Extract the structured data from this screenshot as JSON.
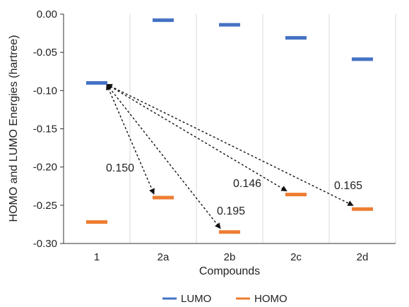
{
  "chart_data": {
    "type": "scatter",
    "xlabel": "Compounds",
    "ylabel": "HOMO and LUMO Energies (hartree)",
    "categories": [
      "1",
      "2a",
      "2b",
      "2c",
      "2d"
    ],
    "ylim": [
      -0.3,
      0.0
    ],
    "yticks": [
      "0.00",
      "-0.05",
      "-0.10",
      "-0.15",
      "-0.20",
      "-0.25",
      "-0.30"
    ],
    "ytick_values": [
      0.0,
      -0.05,
      -0.1,
      -0.15,
      -0.2,
      -0.25,
      -0.3
    ],
    "grid": "vertical",
    "legend": "bottom",
    "series": [
      {
        "name": "LUMO",
        "color": "#4472C4",
        "values": [
          -0.09,
          -0.008,
          -0.014,
          -0.031,
          -0.059
        ]
      },
      {
        "name": "HOMO",
        "color": "#ED7D31",
        "values": [
          -0.272,
          -0.24,
          -0.285,
          -0.236,
          -0.255
        ]
      }
    ],
    "annotations": [
      {
        "text": "0.150",
        "from_category": "1",
        "to_category": "2a"
      },
      {
        "text": "0.195",
        "from_category": "1",
        "to_category": "2b"
      },
      {
        "text": "0.146",
        "from_category": "1",
        "to_category": "2c"
      },
      {
        "text": "0.165",
        "from_category": "1",
        "to_category": "2d"
      }
    ]
  }
}
